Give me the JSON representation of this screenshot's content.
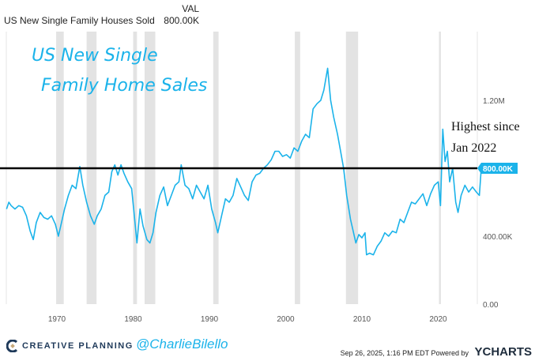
{
  "header": {
    "val_label": "VAL",
    "series_name": "US New Single Family Houses Sold",
    "series_value": "800.00K"
  },
  "annotations": {
    "title_line1": "US New Single",
    "title_line2": "Family Home Sales",
    "note_line1": "Highest since",
    "note_line2": "Jan 2022"
  },
  "footer": {
    "brand": "CREATIVE PLANNING",
    "handle": "@CharlieBilello",
    "timestamp": "Sep 26, 2025, 1:16 PM EDT Powered by",
    "ycharts": "YCHARTS"
  },
  "colors": {
    "line": "#1bb3ea",
    "recession": "#e3e3e3",
    "ref_line": "#000000",
    "brand": "#1f3a5a"
  },
  "chart_data": {
    "type": "line",
    "title": "US New Single Family Houses Sold",
    "xlabel": "",
    "ylabel": "",
    "xlim": [
      1963.4,
      2025.7
    ],
    "ylim": [
      0,
      1600
    ],
    "x_ticks": [
      1970,
      1980,
      1990,
      2000,
      2010,
      2020
    ],
    "x_tick_labels": [
      "1970",
      "1980",
      "1990",
      "2000",
      "2010",
      "2020"
    ],
    "y_ticks": [
      0,
      400,
      1200
    ],
    "y_tick_labels": [
      "0.00",
      "400.00K",
      "1.20M"
    ],
    "last_value_label": "800.00K",
    "reference_line": 800,
    "recessions": [
      [
        1969.9,
        1970.9
      ],
      [
        1973.9,
        1975.2
      ],
      [
        1980.0,
        1980.5
      ],
      [
        1981.5,
        1982.9
      ],
      [
        1990.5,
        1991.2
      ],
      [
        2001.2,
        2001.9
      ],
      [
        2007.9,
        2009.5
      ],
      [
        2020.1,
        2020.35
      ]
    ],
    "series": [
      {
        "name": "US New Single Family Houses Sold",
        "unit": "thousands",
        "points": [
          [
            1963.4,
            560
          ],
          [
            1963.7,
            600
          ],
          [
            1964.0,
            580
          ],
          [
            1964.5,
            560
          ],
          [
            1965.0,
            580
          ],
          [
            1965.5,
            570
          ],
          [
            1966.0,
            520
          ],
          [
            1966.5,
            430
          ],
          [
            1966.9,
            380
          ],
          [
            1967.3,
            480
          ],
          [
            1967.8,
            540
          ],
          [
            1968.3,
            510
          ],
          [
            1968.8,
            500
          ],
          [
            1969.3,
            520
          ],
          [
            1969.8,
            470
          ],
          [
            1970.2,
            400
          ],
          [
            1970.6,
            480
          ],
          [
            1971.0,
            560
          ],
          [
            1971.5,
            640
          ],
          [
            1972.0,
            700
          ],
          [
            1972.5,
            680
          ],
          [
            1973.0,
            810
          ],
          [
            1973.4,
            700
          ],
          [
            1973.9,
            600
          ],
          [
            1974.4,
            520
          ],
          [
            1974.9,
            470
          ],
          [
            1975.3,
            520
          ],
          [
            1975.8,
            560
          ],
          [
            1976.3,
            640
          ],
          [
            1976.8,
            660
          ],
          [
            1977.2,
            780
          ],
          [
            1977.6,
            820
          ],
          [
            1978.0,
            760
          ],
          [
            1978.4,
            820
          ],
          [
            1978.8,
            770
          ],
          [
            1979.3,
            720
          ],
          [
            1979.8,
            680
          ],
          [
            1980.2,
            500
          ],
          [
            1980.5,
            360
          ],
          [
            1980.9,
            560
          ],
          [
            1981.3,
            460
          ],
          [
            1981.8,
            380
          ],
          [
            1982.2,
            360
          ],
          [
            1982.6,
            420
          ],
          [
            1983.0,
            540
          ],
          [
            1983.5,
            640
          ],
          [
            1984.0,
            690
          ],
          [
            1984.5,
            580
          ],
          [
            1985.0,
            640
          ],
          [
            1985.5,
            700
          ],
          [
            1986.0,
            720
          ],
          [
            1986.3,
            820
          ],
          [
            1986.8,
            700
          ],
          [
            1987.3,
            680
          ],
          [
            1987.8,
            620
          ],
          [
            1988.3,
            700
          ],
          [
            1988.8,
            660
          ],
          [
            1989.3,
            620
          ],
          [
            1989.8,
            700
          ],
          [
            1990.3,
            560
          ],
          [
            1990.8,
            480
          ],
          [
            1991.1,
            420
          ],
          [
            1991.6,
            520
          ],
          [
            1992.1,
            620
          ],
          [
            1992.6,
            600
          ],
          [
            1993.1,
            640
          ],
          [
            1993.6,
            740
          ],
          [
            1994.1,
            690
          ],
          [
            1994.6,
            640
          ],
          [
            1995.1,
            610
          ],
          [
            1995.6,
            720
          ],
          [
            1996.1,
            760
          ],
          [
            1996.6,
            770
          ],
          [
            1997.1,
            800
          ],
          [
            1997.6,
            820
          ],
          [
            1998.1,
            850
          ],
          [
            1998.6,
            900
          ],
          [
            1999.1,
            900
          ],
          [
            1999.6,
            870
          ],
          [
            2000.1,
            880
          ],
          [
            2000.6,
            860
          ],
          [
            2001.1,
            920
          ],
          [
            2001.6,
            900
          ],
          [
            2002.1,
            960
          ],
          [
            2002.6,
            1000
          ],
          [
            2003.1,
            980
          ],
          [
            2003.6,
            1150
          ],
          [
            2004.1,
            1180
          ],
          [
            2004.6,
            1200
          ],
          [
            2005.0,
            1260
          ],
          [
            2005.5,
            1389
          ],
          [
            2005.9,
            1200
          ],
          [
            2006.3,
            1100
          ],
          [
            2006.8,
            1000
          ],
          [
            2007.2,
            900
          ],
          [
            2007.6,
            800
          ],
          [
            2008.0,
            640
          ],
          [
            2008.5,
            500
          ],
          [
            2008.9,
            420
          ],
          [
            2009.2,
            360
          ],
          [
            2009.6,
            410
          ],
          [
            2010.0,
            390
          ],
          [
            2010.4,
            420
          ],
          [
            2010.6,
            290
          ],
          [
            2011.0,
            300
          ],
          [
            2011.5,
            290
          ],
          [
            2012.0,
            340
          ],
          [
            2012.5,
            370
          ],
          [
            2013.0,
            420
          ],
          [
            2013.5,
            400
          ],
          [
            2014.0,
            430
          ],
          [
            2014.5,
            420
          ],
          [
            2015.0,
            500
          ],
          [
            2015.5,
            480
          ],
          [
            2016.0,
            540
          ],
          [
            2016.5,
            600
          ],
          [
            2017.0,
            590
          ],
          [
            2017.5,
            620
          ],
          [
            2018.0,
            650
          ],
          [
            2018.5,
            580
          ],
          [
            2019.0,
            650
          ],
          [
            2019.5,
            700
          ],
          [
            2020.0,
            720
          ],
          [
            2020.3,
            580
          ],
          [
            2020.6,
            1030
          ],
          [
            2020.9,
            840
          ],
          [
            2021.2,
            900
          ],
          [
            2021.5,
            720
          ],
          [
            2021.9,
            800
          ],
          [
            2022.3,
            600
          ],
          [
            2022.6,
            540
          ],
          [
            2023.0,
            640
          ],
          [
            2023.5,
            700
          ],
          [
            2024.0,
            660
          ],
          [
            2024.5,
            690
          ],
          [
            2025.0,
            660
          ],
          [
            2025.4,
            640
          ],
          [
            2025.65,
            800
          ]
        ]
      }
    ]
  }
}
